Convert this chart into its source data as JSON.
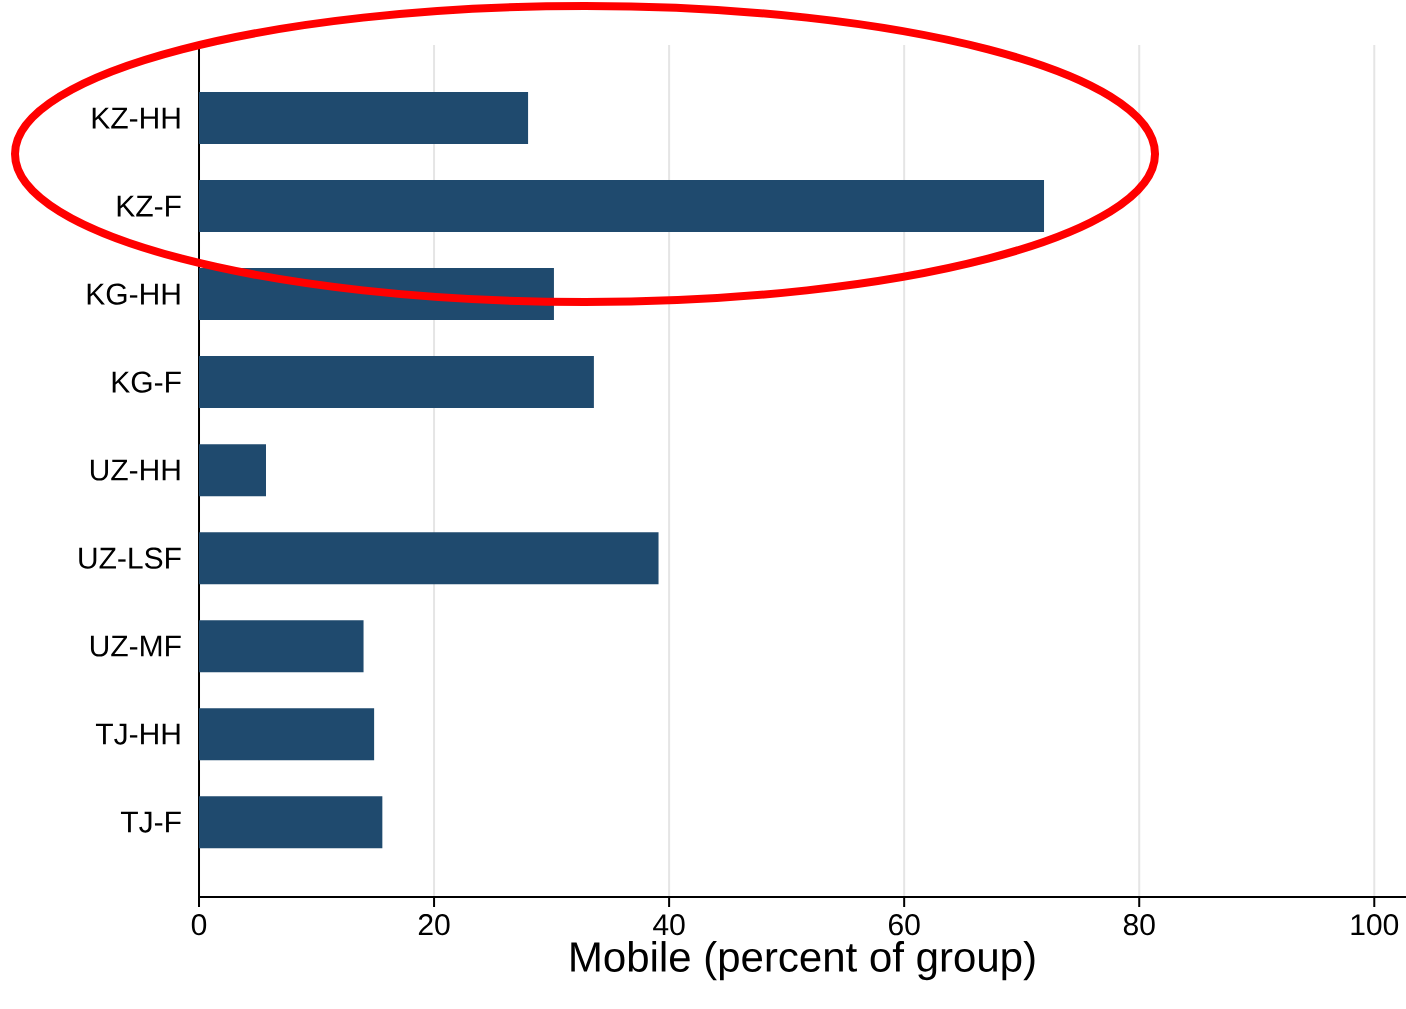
{
  "chart_data": {
    "type": "bar",
    "orientation": "horizontal",
    "xlabel": "Mobile (percent of group)",
    "categories": [
      "KZ-HH",
      "KZ-F",
      "KG-HH",
      "KG-F",
      "UZ-HH",
      "UZ-LSF",
      "UZ-MF",
      "TJ-HH",
      "TJ-F"
    ],
    "values": [
      28.0,
      71.9,
      30.2,
      33.6,
      5.7,
      39.1,
      14.0,
      14.9,
      15.6
    ],
    "color": "#1f4a6e",
    "xlim": [
      0,
      102.7
    ],
    "xticks": [
      0,
      20,
      40,
      60,
      80,
      100
    ],
    "grid": "x"
  }
}
